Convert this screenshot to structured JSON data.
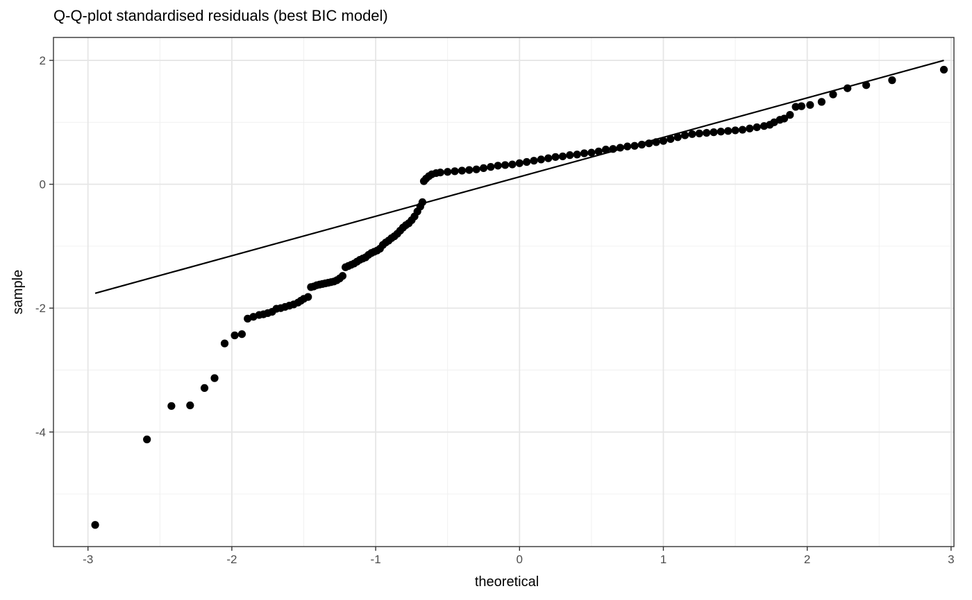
{
  "chart_data": {
    "type": "scatter",
    "title": "Q-Q-plot standardised residuals (best BIC model)",
    "xlabel": "theoretical",
    "ylabel": "sample",
    "xlim": [
      -3.24,
      3.02
    ],
    "ylim": [
      -5.85,
      2.37
    ],
    "x_ticks": [
      -3,
      -2,
      -1,
      0,
      1,
      2,
      3
    ],
    "x_tick_labels": [
      "-3",
      "-2",
      "-1",
      "0",
      "1",
      "2",
      "3"
    ],
    "y_ticks": [
      -4,
      -2,
      0,
      2
    ],
    "y_tick_labels": [
      "-4",
      "-2",
      "0",
      "2"
    ],
    "grid": true,
    "point_color": "#000000",
    "line_color": "#000000",
    "reference_line": {
      "x": [
        -2.95,
        2.95
      ],
      "y": [
        -1.76,
        2.0
      ]
    },
    "points": [
      [
        -2.95,
        -5.5
      ],
      [
        -2.59,
        -4.12
      ],
      [
        -2.42,
        -3.58
      ],
      [
        -2.29,
        -3.57
      ],
      [
        -2.19,
        -3.29
      ],
      [
        -2.12,
        -3.13
      ],
      [
        -2.05,
        -2.57
      ],
      [
        -1.98,
        -2.44
      ],
      [
        -1.93,
        -2.42
      ],
      [
        -1.89,
        -2.17
      ],
      [
        -1.85,
        -2.14
      ],
      [
        -1.81,
        -2.11
      ],
      [
        -1.78,
        -2.1
      ],
      [
        -1.75,
        -2.08
      ],
      [
        -1.72,
        -2.06
      ],
      [
        -1.69,
        -2.01
      ],
      [
        -1.66,
        -2.0
      ],
      [
        -1.63,
        -1.98
      ],
      [
        -1.6,
        -1.96
      ],
      [
        -1.57,
        -1.94
      ],
      [
        -1.54,
        -1.91
      ],
      [
        -1.52,
        -1.88
      ],
      [
        -1.5,
        -1.85
      ],
      [
        -1.47,
        -1.82
      ],
      [
        -1.45,
        -1.66
      ],
      [
        -1.43,
        -1.65
      ],
      [
        -1.41,
        -1.63
      ],
      [
        -1.39,
        -1.62
      ],
      [
        -1.37,
        -1.61
      ],
      [
        -1.35,
        -1.6
      ],
      [
        -1.33,
        -1.59
      ],
      [
        -1.31,
        -1.58
      ],
      [
        -1.29,
        -1.57
      ],
      [
        -1.27,
        -1.55
      ],
      [
        -1.25,
        -1.52
      ],
      [
        -1.23,
        -1.48
      ],
      [
        -1.21,
        -1.34
      ],
      [
        -1.19,
        -1.32
      ],
      [
        -1.17,
        -1.3
      ],
      [
        -1.15,
        -1.28
      ],
      [
        -1.13,
        -1.25
      ],
      [
        -1.11,
        -1.22
      ],
      [
        -1.09,
        -1.2
      ],
      [
        -1.07,
        -1.18
      ],
      [
        -1.05,
        -1.14
      ],
      [
        -1.03,
        -1.11
      ],
      [
        -1.01,
        -1.09
      ],
      [
        -0.99,
        -1.07
      ],
      [
        -0.97,
        -1.04
      ],
      [
        -0.95,
        -0.98
      ],
      [
        -0.93,
        -0.94
      ],
      [
        -0.91,
        -0.91
      ],
      [
        -0.89,
        -0.87
      ],
      [
        -0.87,
        -0.84
      ],
      [
        -0.85,
        -0.8
      ],
      [
        -0.83,
        -0.75
      ],
      [
        -0.81,
        -0.7
      ],
      [
        -0.79,
        -0.66
      ],
      [
        -0.77,
        -0.63
      ],
      [
        -0.75,
        -0.58
      ],
      [
        -0.73,
        -0.52
      ],
      [
        -0.71,
        -0.44
      ],
      [
        -0.69,
        -0.36
      ],
      [
        -0.675,
        -0.29
      ],
      [
        -0.665,
        0.05
      ],
      [
        -0.65,
        0.09
      ],
      [
        -0.63,
        0.13
      ],
      [
        -0.61,
        0.16
      ],
      [
        -0.58,
        0.18
      ],
      [
        -0.55,
        0.19
      ],
      [
        -0.5,
        0.2
      ],
      [
        -0.45,
        0.21
      ],
      [
        -0.4,
        0.22
      ],
      [
        -0.35,
        0.23
      ],
      [
        -0.3,
        0.24
      ],
      [
        -0.25,
        0.26
      ],
      [
        -0.2,
        0.28
      ],
      [
        -0.15,
        0.3
      ],
      [
        -0.1,
        0.31
      ],
      [
        -0.05,
        0.32
      ],
      [
        0.0,
        0.34
      ],
      [
        0.05,
        0.36
      ],
      [
        0.1,
        0.38
      ],
      [
        0.15,
        0.4
      ],
      [
        0.2,
        0.42
      ],
      [
        0.25,
        0.44
      ],
      [
        0.3,
        0.45
      ],
      [
        0.35,
        0.47
      ],
      [
        0.4,
        0.48
      ],
      [
        0.45,
        0.5
      ],
      [
        0.5,
        0.51
      ],
      [
        0.55,
        0.53
      ],
      [
        0.6,
        0.56
      ],
      [
        0.65,
        0.57
      ],
      [
        0.7,
        0.59
      ],
      [
        0.75,
        0.61
      ],
      [
        0.8,
        0.62
      ],
      [
        0.85,
        0.64
      ],
      [
        0.9,
        0.66
      ],
      [
        0.95,
        0.68
      ],
      [
        1.0,
        0.7
      ],
      [
        1.05,
        0.73
      ],
      [
        1.1,
        0.76
      ],
      [
        1.15,
        0.79
      ],
      [
        1.2,
        0.81
      ],
      [
        1.25,
        0.82
      ],
      [
        1.3,
        0.83
      ],
      [
        1.35,
        0.84
      ],
      [
        1.4,
        0.85
      ],
      [
        1.45,
        0.86
      ],
      [
        1.5,
        0.87
      ],
      [
        1.55,
        0.88
      ],
      [
        1.6,
        0.9
      ],
      [
        1.65,
        0.92
      ],
      [
        1.7,
        0.94
      ],
      [
        1.74,
        0.96
      ],
      [
        1.77,
        1.0
      ],
      [
        1.81,
        1.04
      ],
      [
        1.84,
        1.06
      ],
      [
        1.88,
        1.12
      ],
      [
        1.92,
        1.25
      ],
      [
        1.96,
        1.26
      ],
      [
        2.02,
        1.28
      ],
      [
        2.1,
        1.33
      ],
      [
        2.18,
        1.45
      ],
      [
        2.28,
        1.55
      ],
      [
        2.41,
        1.6
      ],
      [
        2.59,
        1.68
      ],
      [
        2.95,
        1.85
      ]
    ]
  }
}
